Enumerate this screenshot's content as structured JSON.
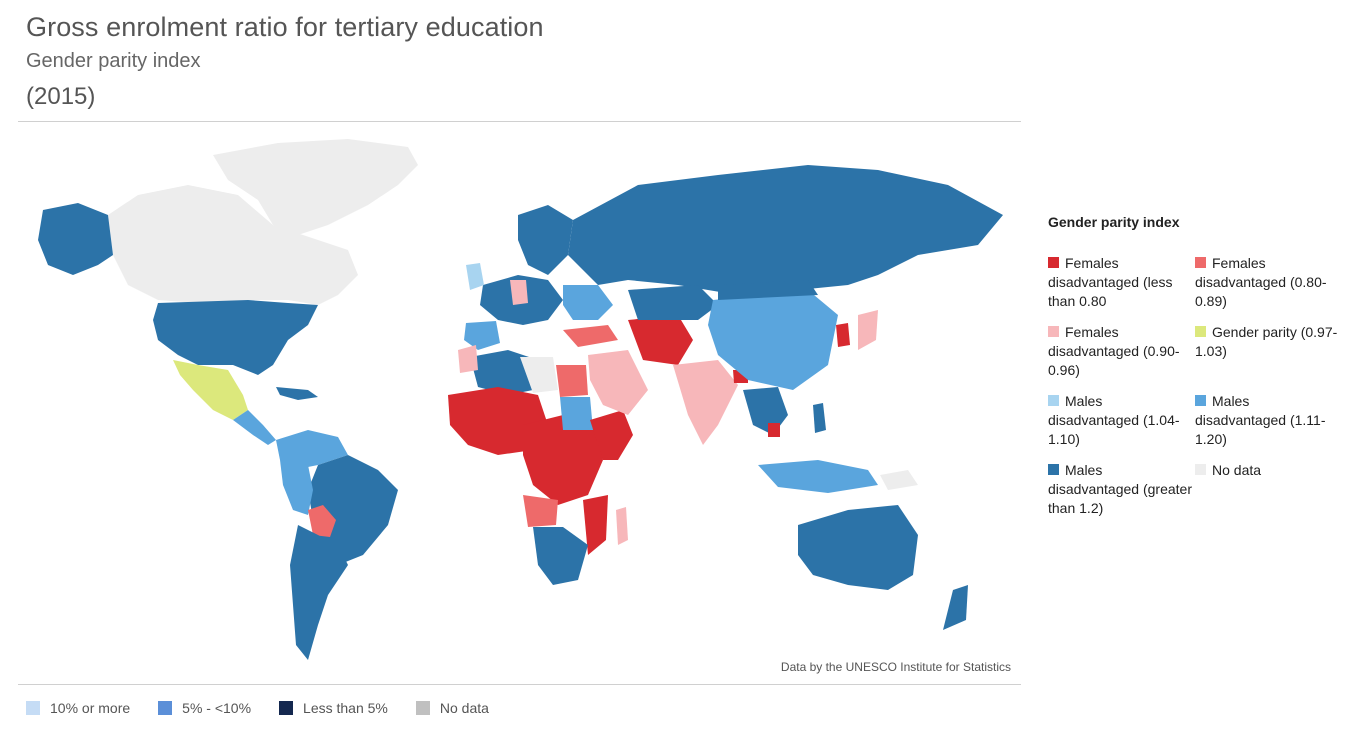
{
  "header": {
    "title": "Gross enrolment ratio for tertiary education",
    "subtitle": "Gender parity index",
    "year": "(2015)"
  },
  "map": {
    "credit": "Data by the UNESCO Institute for Statistics",
    "legend_title": "Gender parity index",
    "legend": [
      {
        "label": "Females disadvantaged (less than 0.80",
        "color": "#d7292f"
      },
      {
        "label": "Females disadvantaged (0.80-0.89)",
        "color": "#ee6a6a"
      },
      {
        "label": "Females disadvantaged (0.90-0.96)",
        "color": "#f7b7ba"
      },
      {
        "label": "Gender parity (0.97-1.03)",
        "color": "#dce87c"
      },
      {
        "label": "Males disadvantaged (1.04-1.10)",
        "color": "#a8d4f0"
      },
      {
        "label": "Males disadvantaged (1.11-1.20)",
        "color": "#5aa5dd"
      },
      {
        "label": "Males disadvantaged (greater than 1.2)",
        "color": "#2c73a8"
      },
      {
        "label": "No data",
        "color": "#ededed"
      }
    ]
  },
  "bottom_legend": [
    {
      "label": "10% or more",
      "color": "#c5dcf5"
    },
    {
      "label": "5% - <10%",
      "color": "#5b8fd8"
    },
    {
      "label": "Less than 5%",
      "color": "#14284f"
    },
    {
      "label": "No data",
      "color": "#c0c0c0"
    }
  ]
}
